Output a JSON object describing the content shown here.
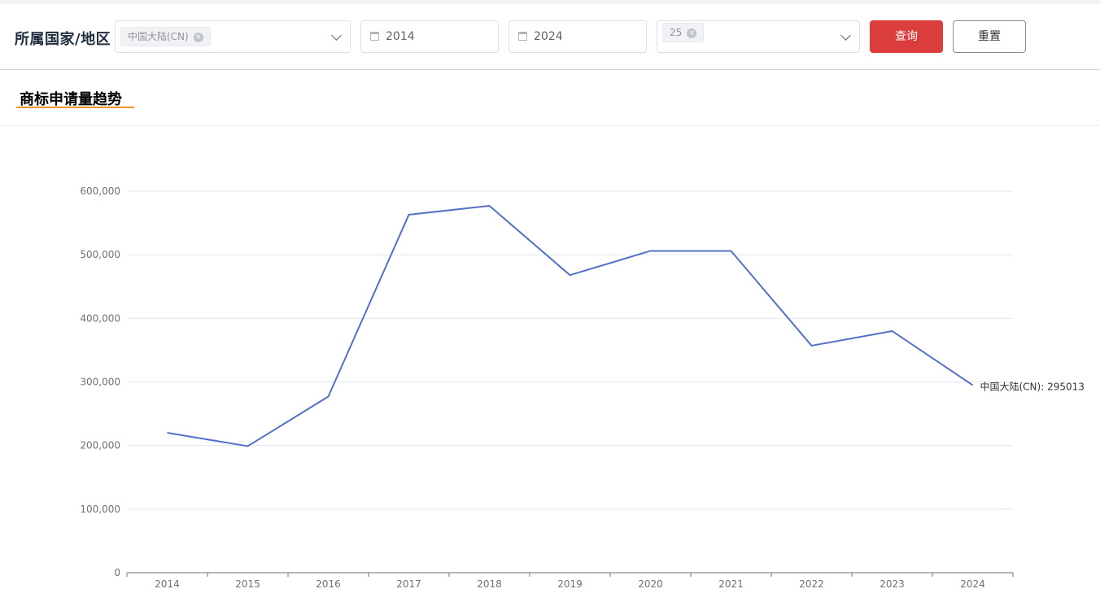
{
  "filter": {
    "label": "所属国家/地区",
    "country_tag": "中国大陆(CN)",
    "tag_close_glyph": "×",
    "start_year": "2014",
    "end_year": "2024",
    "size_tag": "25",
    "query_button": "查询",
    "reset_button": "重置"
  },
  "section": {
    "title": "商标申请量趋势"
  },
  "colors": {
    "series": "#5470c6",
    "query_button": "#db3d3d",
    "title_underline": "#f0952d"
  },
  "chart_data": {
    "type": "line",
    "title": "",
    "xlabel": "",
    "ylabel": "",
    "categories": [
      "2014",
      "2015",
      "2016",
      "2017",
      "2018",
      "2019",
      "2020",
      "2021",
      "2022",
      "2023",
      "2024"
    ],
    "series": [
      {
        "name": "中国大陆(CN)",
        "values": [
          220000,
          199000,
          277000,
          563000,
          577000,
          468000,
          506000,
          506000,
          357000,
          380000,
          295013
        ]
      }
    ],
    "end_label": "中国大陆(CN): 295013",
    "ylim": [
      0,
      600000
    ],
    "yticks": [
      0,
      100000,
      200000,
      300000,
      400000,
      500000,
      600000
    ],
    "ytick_labels": [
      "0",
      "100,000",
      "200,000",
      "300,000",
      "400,000",
      "500,000",
      "600,000"
    ],
    "grid": true,
    "legend": "none"
  }
}
